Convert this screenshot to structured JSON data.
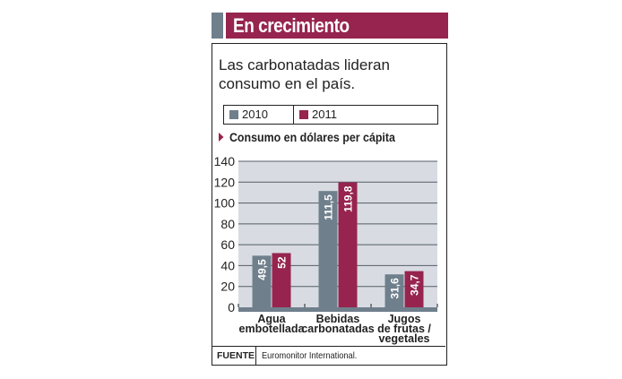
{
  "header": {
    "title": "En crecimiento"
  },
  "subtitle": "Las carbonatadas lideran consumo en el país.",
  "colors": {
    "accent": "#96244e",
    "series_2010": "#6f7f8c",
    "series_2011": "#96244e",
    "plot_bg": "#d8dce2",
    "grid": "#555d66"
  },
  "footer": {
    "label": "FUENTE",
    "source": "Euromonitor International."
  },
  "chart_data": {
    "type": "bar",
    "title": "Consumo en dólares per cápita",
    "xlabel": "",
    "ylabel": "",
    "ylim": [
      0,
      140
    ],
    "yticks": [
      "0",
      "20",
      "40",
      "60",
      "80",
      "100",
      "120",
      "140"
    ],
    "ytick_values": [
      0,
      20,
      40,
      60,
      80,
      100,
      120,
      140
    ],
    "grid": true,
    "legend": "top",
    "categories": [
      [
        "Agua",
        "embotellada"
      ],
      [
        "Bebidas",
        "carbonatadas"
      ],
      [
        "Jugos",
        "de frutas /",
        "vegetales"
      ]
    ],
    "series": [
      {
        "name": "2010",
        "values": [
          49.5,
          111.5,
          31.6
        ],
        "labels": [
          "49,5",
          "111,5",
          "31,6"
        ]
      },
      {
        "name": "2011",
        "values": [
          52,
          119.8,
          34.7
        ],
        "labels": [
          "52",
          "119,8",
          "34,7"
        ]
      }
    ]
  }
}
